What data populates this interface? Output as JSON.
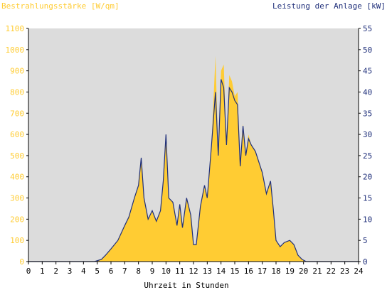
{
  "chart_data": {
    "type": "area",
    "left_axis_title": "Bestrahlungsstärke [W/qm]",
    "right_axis_title": "Leistung der Anlage [kW]",
    "xlabel": "Uhrzeit in Stunden",
    "xlim": [
      0,
      24
    ],
    "x_ticks": [
      "0",
      "1",
      "2",
      "3",
      "4",
      "5",
      "6",
      "7",
      "8",
      "9",
      "10",
      "11",
      "12",
      "13",
      "14",
      "15",
      "16",
      "17",
      "18",
      "19",
      "20",
      "21",
      "22",
      "23",
      "24"
    ],
    "y_left_lim": [
      0,
      1100
    ],
    "y_left_ticks": [
      "0",
      "100",
      "200",
      "300",
      "400",
      "500",
      "600",
      "700",
      "800",
      "900",
      "1000",
      "1100"
    ],
    "y_right_lim": [
      0,
      55
    ],
    "y_right_ticks": [
      "0",
      "5",
      "10",
      "15",
      "20",
      "25",
      "30",
      "35",
      "40",
      "45",
      "50",
      "55"
    ],
    "grid": false,
    "colors": {
      "plot_background": "#dcdcdc",
      "irradiance_fill": "#ffcc33",
      "power_line": "#1f2f7a",
      "left_axis_text": "#ffcc33",
      "right_axis_text": "#1f2f7a"
    },
    "series": [
      {
        "name": "Bestrahlungsstärke [W/qm]",
        "axis": "left",
        "style": "filled-area",
        "x": [
          0,
          4.8,
          5.3,
          5.6,
          6.0,
          6.5,
          7.0,
          7.3,
          7.7,
          8.0,
          8.2,
          8.4,
          8.7,
          9.0,
          9.3,
          9.6,
          9.8,
          10.0,
          10.2,
          10.5,
          10.8,
          11.0,
          11.2,
          11.5,
          11.8,
          12.0,
          12.2,
          12.5,
          12.8,
          13.0,
          13.3,
          13.6,
          13.8,
          14.0,
          14.2,
          14.4,
          14.6,
          14.8,
          15.0,
          15.2,
          15.4,
          15.6,
          15.8,
          16.0,
          16.2,
          16.5,
          16.8,
          17.0,
          17.3,
          17.6,
          17.8,
          18.0,
          18.3,
          18.6,
          19.0,
          19.3,
          19.6,
          19.9,
          20.2,
          20.5,
          24
        ],
        "y": [
          0,
          0,
          10,
          30,
          60,
          100,
          170,
          210,
          300,
          360,
          490,
          300,
          200,
          240,
          190,
          240,
          380,
          590,
          300,
          280,
          170,
          270,
          160,
          300,
          220,
          80,
          80,
          260,
          360,
          300,
          540,
          970,
          500,
          900,
          930,
          550,
          880,
          850,
          780,
          800,
          450,
          650,
          500,
          600,
          550,
          520,
          460,
          420,
          320,
          380,
          250,
          100,
          70,
          90,
          100,
          80,
          30,
          10,
          0,
          0,
          0
        ]
      },
      {
        "name": "Leistung der Anlage [kW]",
        "axis": "right",
        "style": "line",
        "x": [
          0,
          4.8,
          5.3,
          5.6,
          6.0,
          6.5,
          7.0,
          7.3,
          7.7,
          8.0,
          8.2,
          8.4,
          8.7,
          9.0,
          9.3,
          9.6,
          9.8,
          10.0,
          10.2,
          10.5,
          10.8,
          11.0,
          11.2,
          11.5,
          11.8,
          12.0,
          12.2,
          12.5,
          12.8,
          13.0,
          13.3,
          13.6,
          13.8,
          14.0,
          14.2,
          14.4,
          14.6,
          14.8,
          15.0,
          15.2,
          15.4,
          15.6,
          15.8,
          16.0,
          16.2,
          16.5,
          16.8,
          17.0,
          17.3,
          17.6,
          17.8,
          18.0,
          18.3,
          18.6,
          19.0,
          19.3,
          19.6,
          19.9,
          20.2,
          20.5,
          24
        ],
        "y": [
          0,
          0,
          0.5,
          1.5,
          3,
          5,
          8.5,
          10.5,
          15,
          18,
          24.5,
          15,
          10,
          12,
          9.5,
          12,
          19,
          30,
          15,
          14,
          8.5,
          13.5,
          8,
          15,
          11,
          4,
          4,
          13,
          18,
          15,
          27,
          40,
          25,
          43,
          41,
          27.5,
          41,
          40,
          38,
          37,
          22.5,
          32,
          25,
          29,
          27.5,
          26,
          23,
          21,
          16,
          19,
          12.5,
          5,
          3.5,
          4.5,
          5,
          4,
          1.5,
          0.5,
          0,
          0,
          0
        ]
      }
    ]
  }
}
